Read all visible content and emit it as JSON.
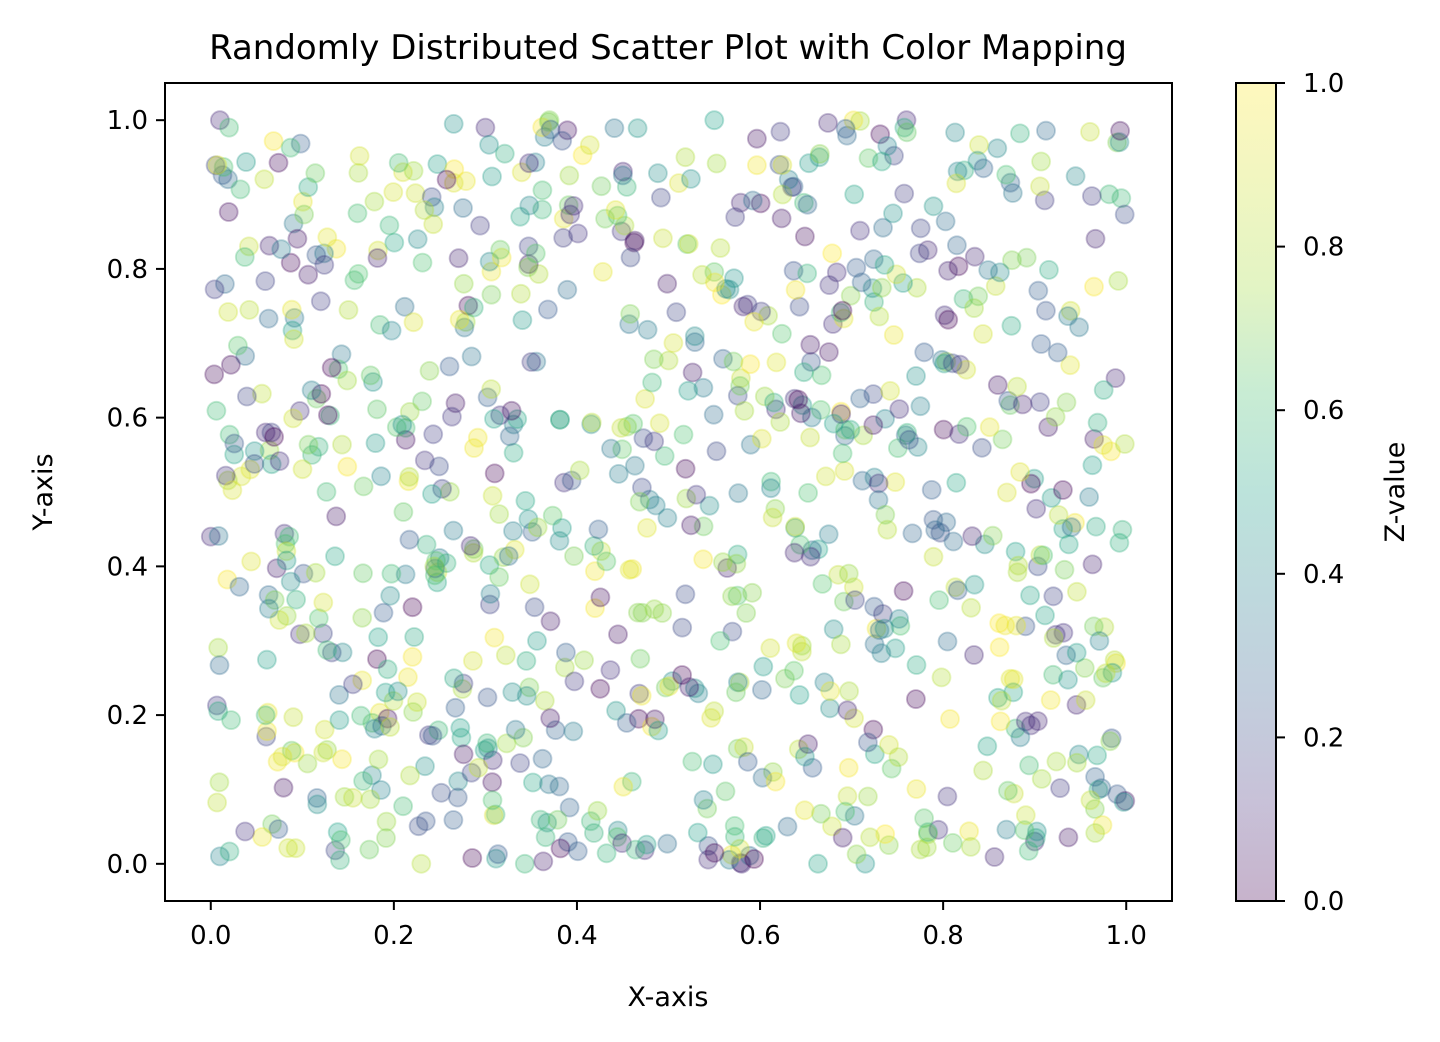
{
  "chart_data": {
    "type": "scatter",
    "title": "Randomly Distributed Scatter Plot with Color Mapping",
    "xlabel": "X-axis",
    "ylabel": "Y-axis",
    "xlim": [
      -0.05,
      1.05
    ],
    "ylim": [
      -0.05,
      1.05
    ],
    "xticks": [
      "0.0",
      "0.2",
      "0.4",
      "0.6",
      "0.8",
      "1.0"
    ],
    "yticks": [
      "0.0",
      "0.2",
      "0.4",
      "0.6",
      "0.8",
      "1.0"
    ],
    "grid": false,
    "legend": "none",
    "marker_alpha": 0.3,
    "point_count": 1000,
    "colorbar": {
      "label": "Z-value",
      "colormap": "viridis",
      "range": [
        0.0,
        1.0
      ],
      "ticks": [
        "0.0",
        "0.2",
        "0.4",
        "0.6",
        "0.8",
        "1.0"
      ],
      "placement": "right"
    },
    "sample_points": [
      {
        "x": 0.01,
        "y": 1.0,
        "z": 0.1
      },
      {
        "x": 0.02,
        "y": 0.99,
        "z": 0.6
      },
      {
        "x": 0.3,
        "y": 0.99,
        "z": 0.1
      },
      {
        "x": 0.37,
        "y": 1.0,
        "z": 0.7
      },
      {
        "x": 0.55,
        "y": 1.0,
        "z": 0.5
      },
      {
        "x": 0.76,
        "y": 1.0,
        "z": 0.1
      },
      {
        "x": 0.99,
        "y": 0.97,
        "z": 0.7
      },
      {
        "x": 0.06,
        "y": 0.58,
        "z": 0.1
      },
      {
        "x": 0.21,
        "y": 0.93,
        "z": 0.9
      },
      {
        "x": 0.58,
        "y": 0.0,
        "z": 0.1
      },
      {
        "x": 0.63,
        "y": 0.05,
        "z": 0.3
      },
      {
        "x": 0.9,
        "y": 0.03,
        "z": 0.1
      },
      {
        "x": 0.23,
        "y": 0.0,
        "z": 0.8
      },
      {
        "x": 0.0,
        "y": 0.44,
        "z": 0.1
      },
      {
        "x": 0.01,
        "y": 0.01,
        "z": 0.4
      }
    ]
  }
}
